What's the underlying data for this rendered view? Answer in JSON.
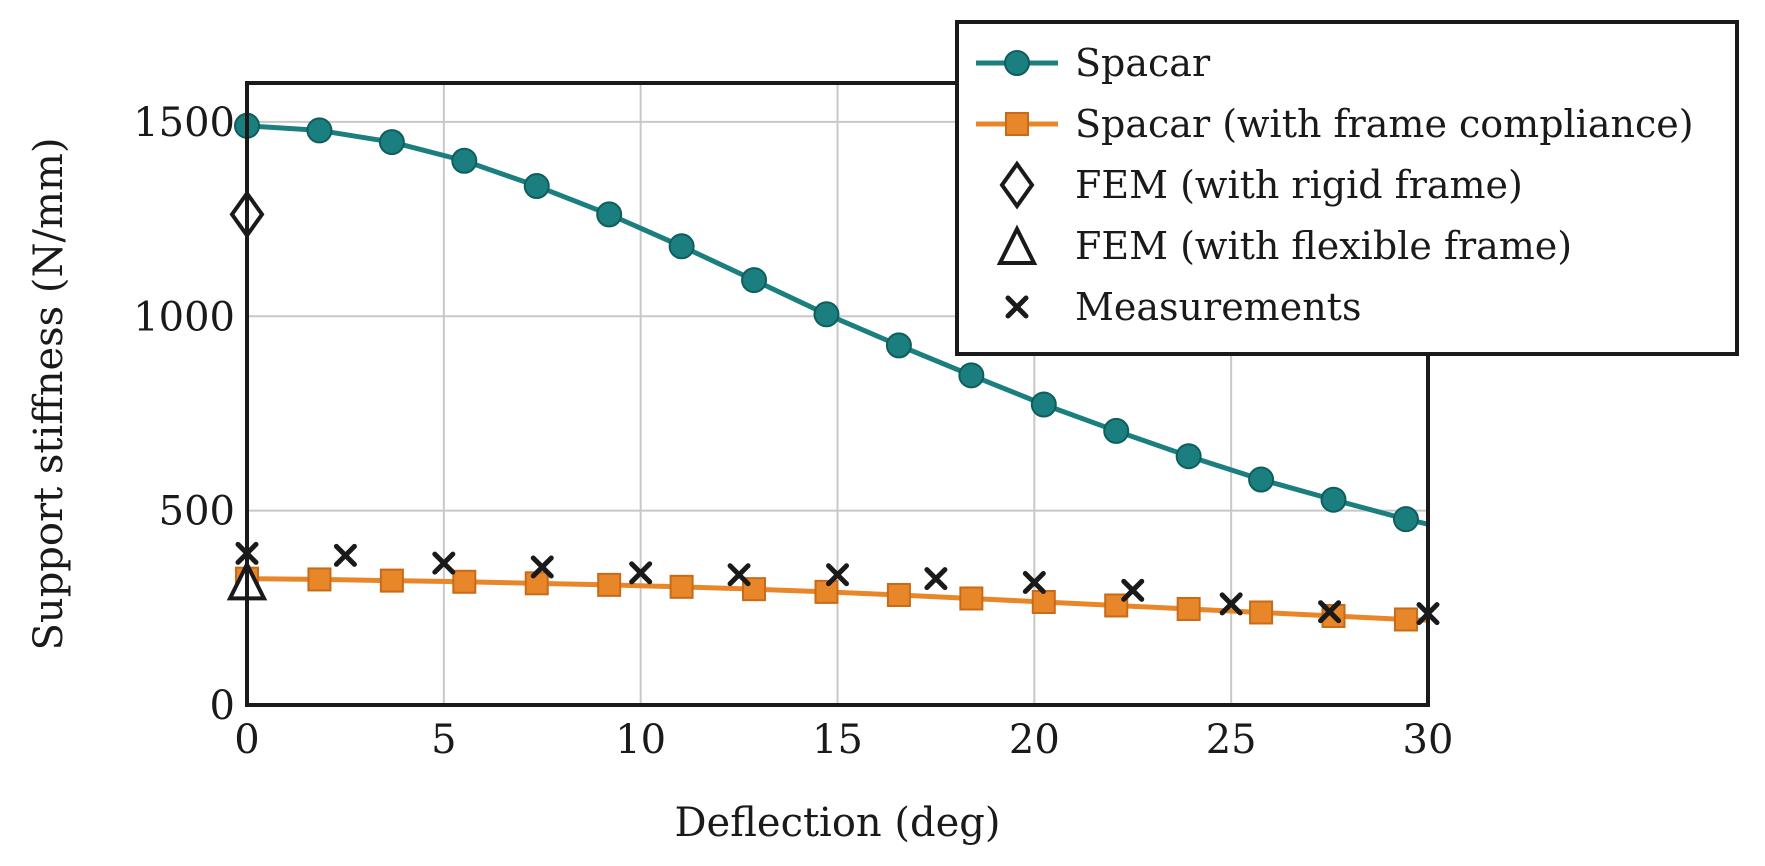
{
  "chart_data": {
    "type": "line",
    "title": "",
    "xlabel": "Deflection (deg)",
    "ylabel": "Support stiffness (N/mm)",
    "xlim": [
      0,
      30
    ],
    "ylim": [
      0,
      1600
    ],
    "xticks": [
      "0",
      "5",
      "10",
      "15",
      "20",
      "25",
      "30"
    ],
    "yticks": [
      "0",
      "500",
      "1000",
      "1500"
    ],
    "grid": true,
    "legend_position": "top-right",
    "series": [
      {
        "name": "Spacar",
        "kind": "line-marker",
        "marker": "circle",
        "color": "#1b7f7f",
        "x": [
          0,
          1.84,
          3.68,
          5.52,
          7.36,
          9.2,
          11.04,
          12.88,
          14.72,
          16.56,
          18.4,
          20.24,
          22.08,
          23.92,
          25.76,
          27.6,
          29.44
        ],
        "y": [
          1490,
          1478,
          1448,
          1400,
          1335,
          1262,
          1180,
          1093,
          1005,
          925,
          848,
          773,
          705,
          640,
          580,
          528,
          478
        ],
        "line_end": [
          30,
          465
        ]
      },
      {
        "name": "Spacar (with frame compliance)",
        "kind": "line-marker",
        "marker": "square",
        "color": "#e8862a",
        "x": [
          0,
          1.84,
          3.68,
          5.52,
          7.36,
          9.2,
          11.04,
          12.88,
          14.72,
          16.56,
          18.4,
          20.24,
          22.08,
          23.92,
          25.76,
          27.6,
          29.44
        ],
        "y": [
          325,
          323,
          320,
          317,
          313,
          309,
          304,
          298,
          291,
          283,
          274,
          265,
          256,
          247,
          238,
          229,
          220
        ],
        "line_end": [
          30,
          218
        ]
      },
      {
        "name": "FEM (with rigid frame)",
        "kind": "marker",
        "marker": "diamond",
        "color": "#1a1a1a",
        "x": [
          0
        ],
        "y": [
          1262
        ]
      },
      {
        "name": "FEM (with flexible frame)",
        "kind": "marker",
        "marker": "triangle",
        "color": "#1a1a1a",
        "x": [
          0
        ],
        "y": [
          318
        ]
      },
      {
        "name": "Measurements",
        "kind": "marker",
        "marker": "cross",
        "color": "#1a1a1a",
        "x": [
          0,
          2.5,
          5,
          7.5,
          10,
          12.5,
          15,
          17.5,
          20,
          22.5,
          25,
          27.5,
          30
        ],
        "y": [
          390,
          385,
          365,
          355,
          340,
          335,
          335,
          325,
          315,
          295,
          260,
          240,
          235
        ]
      }
    ]
  }
}
